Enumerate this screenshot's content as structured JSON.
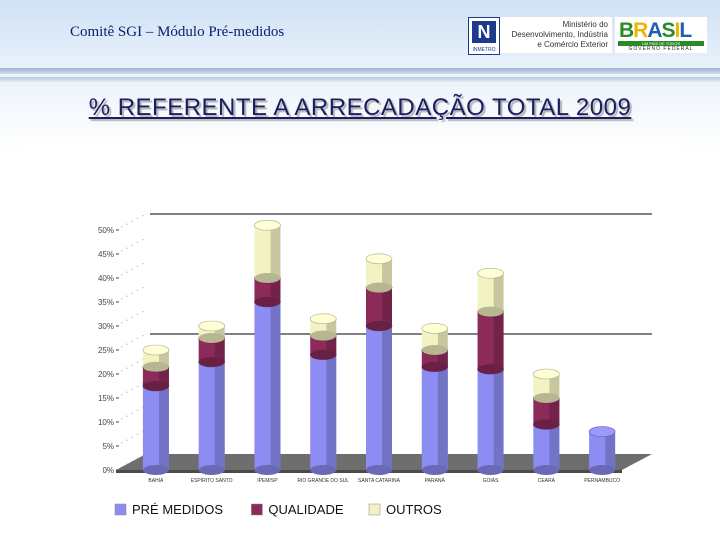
{
  "header": {
    "title": "Comitê SGI – Módulo Pré-medidos",
    "inmetro_label": "INMETRO",
    "ministry_text": [
      "Ministério do",
      "Desenvolvimento, Indústria",
      "e Comércio Exterior"
    ],
    "brasil_word": "BRASIL",
    "brasil_tagline": "UM PAÍS DE TODOS",
    "brasil_footer": "GOVERNO FEDERAL"
  },
  "slide_title": "% REFERENTE  A  ARRECADAÇÃO TOTAL 2009",
  "chart_data": {
    "type": "bar",
    "stacked": true,
    "categories": [
      "BAHIA",
      "ESPÍRITO SANTO",
      "IPEM/SP",
      "RIO GRANDE DO SUL",
      "SANTA CATARINA",
      "PARANÁ",
      "GOIÁS",
      "CEARÁ",
      "PERNAMBUCO"
    ],
    "series": [
      {
        "name": "PRÉ MEDIDOS",
        "color": "#8c8cf2",
        "values": [
          17.5,
          22.5,
          35,
          24,
          30,
          21.5,
          21,
          9.5,
          8
        ]
      },
      {
        "name": "QUALIDADE",
        "color": "#8c2a5a",
        "values": [
          4,
          5,
          5,
          4,
          8,
          3.5,
          12,
          5.5,
          0
        ]
      },
      {
        "name": "OUTROS",
        "color": "#f2f2c2",
        "values": [
          3.5,
          2.5,
          11,
          3.5,
          6,
          4.5,
          8,
          5,
          0
        ]
      }
    ],
    "y_ticks": [
      "0%",
      "5%",
      "10%",
      "15%",
      "20%",
      "25%",
      "30%",
      "35%",
      "40%",
      "45%",
      "50%"
    ],
    "ylim": [
      0,
      50
    ],
    "gridlines_at": [
      25,
      50
    ],
    "legend_position": "bottom"
  }
}
